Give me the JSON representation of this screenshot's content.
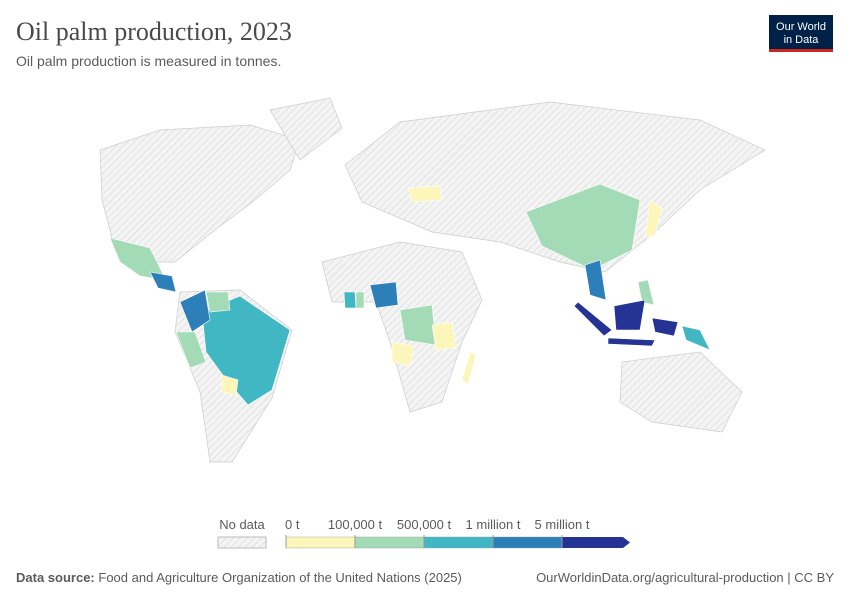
{
  "header": {
    "title": "Oil palm production, 2023",
    "subtitle": "Oil palm production is measured in tonnes."
  },
  "logo": {
    "lines": [
      "Our World",
      "in Data"
    ]
  },
  "legend": {
    "no_data": "No data",
    "thresholds": [
      "0 t",
      "100,000 t",
      "500,000 t",
      "1 million t",
      "5 million t"
    ],
    "colors": [
      "#fdf6bb",
      "#a3dbb6",
      "#42b7c4",
      "#2c7fb8",
      "#253494"
    ]
  },
  "footer": {
    "source_label": "Data source:",
    "source": "Food and Agriculture Organization of the United Nations (2025)",
    "url": "OurWorldinData.org/agricultural-production | CC BY"
  }
}
